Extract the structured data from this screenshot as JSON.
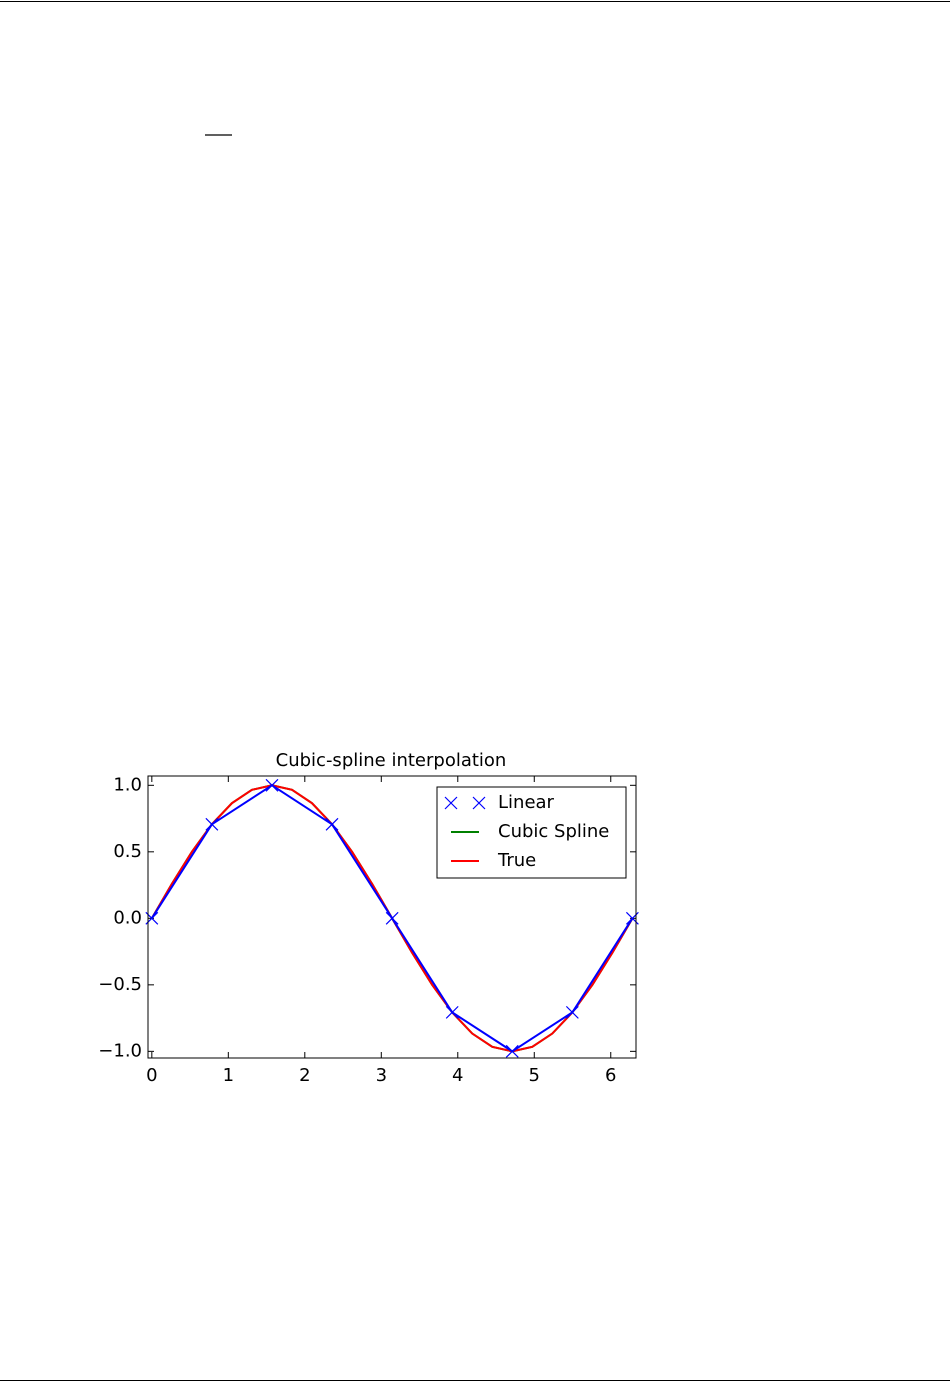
{
  "chart_data": {
    "type": "line",
    "title": "Cubic-spline interpolation",
    "xlim": [
      -0.05,
      6.33
    ],
    "ylim": [
      -1.05,
      1.07
    ],
    "xticks": [
      0,
      1,
      2,
      3,
      4,
      5,
      6
    ],
    "yticks": [
      {
        "value": 1,
        "label": "1.0"
      },
      {
        "value": 0.5,
        "label": "0.5"
      },
      {
        "value": 0,
        "label": "0.0"
      },
      {
        "value": -0.5,
        "label": "−0.5"
      },
      {
        "value": -1,
        "label": "−1.0"
      }
    ],
    "legend": "upper right",
    "series": [
      {
        "name": "Linear",
        "color": "#0000ff",
        "marker": "x",
        "x": [
          0,
          0.785,
          1.571,
          2.356,
          3.142,
          3.927,
          4.712,
          5.498,
          6.283
        ],
        "values": [
          0,
          0.707,
          1,
          0.707,
          0,
          -0.707,
          -1,
          -0.707,
          0
        ]
      },
      {
        "name": "Cubic Spline",
        "color": "#008000",
        "x": [
          0,
          0.262,
          0.524,
          0.785,
          1.047,
          1.309,
          1.571,
          1.833,
          2.094,
          2.356,
          2.618,
          2.88,
          3.142,
          3.403,
          3.665,
          3.927,
          4.189,
          4.451,
          4.712,
          4.974,
          5.236,
          5.498,
          5.76,
          6.021,
          6.283
        ],
        "values": [
          0,
          0.259,
          0.5,
          0.707,
          0.866,
          0.966,
          1,
          0.966,
          0.866,
          0.707,
          0.5,
          0.259,
          0,
          -0.259,
          -0.5,
          -0.707,
          -0.866,
          -0.966,
          -1,
          -0.966,
          -0.866,
          -0.707,
          -0.5,
          -0.259,
          0
        ]
      },
      {
        "name": "True",
        "color": "#ff0000",
        "x": [
          0,
          0.262,
          0.524,
          0.785,
          1.047,
          1.309,
          1.571,
          1.833,
          2.094,
          2.356,
          2.618,
          2.88,
          3.142,
          3.403,
          3.665,
          3.927,
          4.189,
          4.451,
          4.712,
          4.974,
          5.236,
          5.498,
          5.76,
          6.021,
          6.283
        ],
        "values": [
          0,
          0.259,
          0.5,
          0.707,
          0.866,
          0.966,
          1,
          0.966,
          0.866,
          0.707,
          0.5,
          0.259,
          0,
          -0.259,
          -0.5,
          -0.707,
          -0.866,
          -0.966,
          -1,
          -0.966,
          -0.866,
          -0.707,
          -0.5,
          -0.259,
          0
        ]
      }
    ]
  }
}
